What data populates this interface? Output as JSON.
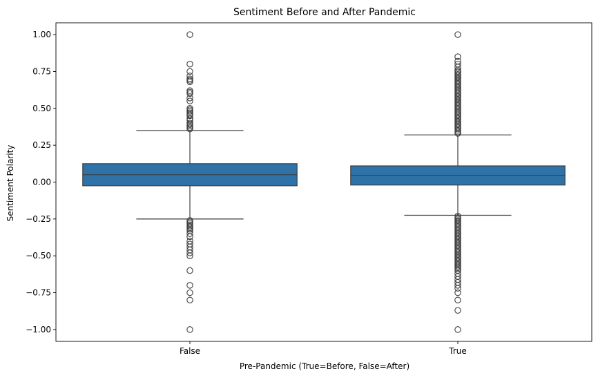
{
  "chart_data": {
    "type": "box",
    "title": "Sentiment Before and After Pandemic",
    "xlabel": "Pre-Pandemic (True=Before, False=After)",
    "ylabel": "Sentiment Polarity",
    "ylim": [
      -1.08,
      1.08
    ],
    "yticks": [
      -1.0,
      -0.75,
      -0.5,
      -0.25,
      0.0,
      0.25,
      0.5,
      0.75,
      1.0
    ],
    "ytick_labels": [
      "−1.00",
      "−0.75",
      "−0.50",
      "−0.25",
      "0.00",
      "0.25",
      "0.50",
      "0.75",
      "1.00"
    ],
    "grid": false,
    "box_color": "#2e72a8",
    "line_color": "#3f3f3f",
    "categories": [
      "False",
      "True"
    ],
    "boxes": [
      {
        "category": "False",
        "q1": -0.025,
        "median": 0.05,
        "q3": 0.125,
        "whisker_low": -0.25,
        "whisker_high": 0.35,
        "outliers_high": [
          0.36,
          0.37,
          0.38,
          0.39,
          0.4,
          0.42,
          0.43,
          0.45,
          0.46,
          0.47,
          0.48,
          0.49,
          0.5,
          0.55,
          0.57,
          0.6,
          0.61,
          0.62,
          0.68,
          0.69,
          0.7,
          0.72,
          0.75,
          0.8,
          1.0
        ],
        "outliers_low": [
          -0.26,
          -0.27,
          -0.28,
          -0.29,
          -0.3,
          -0.31,
          -0.32,
          -0.33,
          -0.35,
          -0.37,
          -0.4,
          -0.42,
          -0.44,
          -0.46,
          -0.48,
          -0.5,
          -0.6,
          -0.7,
          -0.75,
          -0.8,
          -1.0
        ]
      },
      {
        "category": "True",
        "q1": -0.02,
        "median": 0.045,
        "q3": 0.11,
        "whisker_low": -0.225,
        "whisker_high": 0.32,
        "outliers_high": [
          0.33,
          0.34,
          0.35,
          0.36,
          0.37,
          0.38,
          0.39,
          0.4,
          0.41,
          0.42,
          0.43,
          0.44,
          0.45,
          0.46,
          0.47,
          0.48,
          0.49,
          0.5,
          0.51,
          0.52,
          0.53,
          0.54,
          0.55,
          0.56,
          0.57,
          0.58,
          0.59,
          0.6,
          0.61,
          0.62,
          0.63,
          0.64,
          0.65,
          0.66,
          0.67,
          0.68,
          0.69,
          0.7,
          0.71,
          0.72,
          0.73,
          0.74,
          0.75,
          0.76,
          0.78,
          0.8,
          0.82,
          0.85,
          1.0
        ],
        "outliers_low": [
          -0.23,
          -0.24,
          -0.25,
          -0.26,
          -0.27,
          -0.28,
          -0.29,
          -0.3,
          -0.31,
          -0.32,
          -0.33,
          -0.34,
          -0.35,
          -0.36,
          -0.37,
          -0.38,
          -0.39,
          -0.4,
          -0.41,
          -0.42,
          -0.43,
          -0.44,
          -0.45,
          -0.46,
          -0.47,
          -0.48,
          -0.49,
          -0.5,
          -0.51,
          -0.52,
          -0.53,
          -0.54,
          -0.55,
          -0.56,
          -0.57,
          -0.58,
          -0.59,
          -0.6,
          -0.62,
          -0.64,
          -0.66,
          -0.68,
          -0.7,
          -0.72,
          -0.75,
          -0.8,
          -0.87,
          -1.0
        ]
      }
    ]
  }
}
